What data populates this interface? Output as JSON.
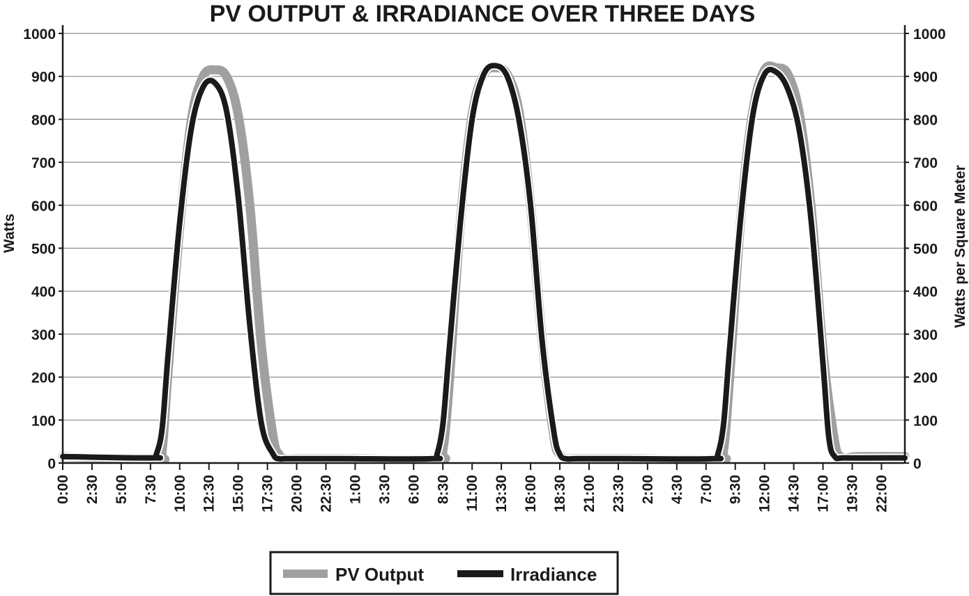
{
  "chart_data": {
    "type": "line",
    "title": "PV OUTPUT & IRRADIANCE OVER THREE DAYS",
    "ylabel_left": "Watts",
    "ylabel_right": "Watts per Square Meter",
    "ylim": [
      0,
      1000
    ],
    "y_ticks": [
      "0",
      "100",
      "200",
      "300",
      "400",
      "500",
      "600",
      "700",
      "800",
      "900",
      "1000"
    ],
    "x_tick_labels": [
      "0:00",
      "2:30",
      "5:00",
      "7:30",
      "10:00",
      "12:30",
      "15:00",
      "17:30",
      "20:00",
      "22:30",
      "1:00",
      "3:30",
      "6:00",
      "8:30",
      "11:00",
      "13:30",
      "16:00",
      "18:30",
      "21:00",
      "23:30",
      "2:00",
      "4:30",
      "7:00",
      "9:30",
      "12:00",
      "14:30",
      "17:00",
      "19:30",
      "22:00"
    ],
    "x_hours_range": [
      0,
      72
    ],
    "x_tick_step_hours": 2.5,
    "grid": "horizontal",
    "legend_position": "bottom-center",
    "series": [
      {
        "name": "PV Output",
        "color": "#a0a0a0",
        "x_hours": [
          0,
          8,
          8.5,
          9,
          10,
          11,
          12,
          13,
          14,
          15,
          16,
          17,
          18,
          18.5,
          19,
          20,
          24,
          32,
          32.5,
          33,
          34,
          35,
          36,
          37,
          38,
          39,
          40,
          41,
          42,
          42.5,
          43,
          44,
          48,
          56,
          56.5,
          57,
          58,
          59,
          60,
          61,
          62,
          63,
          64,
          65,
          66,
          66.5,
          67,
          68,
          72
        ],
        "values": [
          15,
          10,
          30,
          210,
          550,
          800,
          900,
          915,
          900,
          810,
          600,
          270,
          60,
          20,
          10,
          10,
          10,
          10,
          30,
          170,
          560,
          810,
          905,
          920,
          905,
          820,
          600,
          280,
          60,
          20,
          10,
          10,
          10,
          10,
          30,
          190,
          580,
          820,
          915,
          920,
          905,
          810,
          590,
          260,
          50,
          15,
          12,
          15,
          15
        ]
      },
      {
        "name": "Irradiance",
        "color": "#1a1a1a",
        "x_hours": [
          0,
          7.7,
          8,
          8.5,
          9,
          10,
          11,
          12,
          13,
          14,
          15,
          16,
          17,
          18,
          18.5,
          19,
          20,
          24,
          31.6,
          32,
          32.5,
          33,
          34,
          35,
          36,
          37,
          38,
          39,
          40,
          41,
          42,
          42.5,
          43,
          44,
          48,
          55.6,
          56,
          56.5,
          57,
          58,
          59,
          60,
          61,
          62,
          63,
          64,
          65,
          65.5,
          66,
          67,
          72
        ],
        "values": [
          15,
          12,
          20,
          80,
          250,
          560,
          780,
          875,
          885,
          820,
          620,
          320,
          90,
          20,
          10,
          10,
          10,
          10,
          10,
          20,
          90,
          250,
          560,
          800,
          905,
          925,
          900,
          800,
          600,
          280,
          70,
          20,
          10,
          10,
          10,
          10,
          20,
          90,
          260,
          580,
          810,
          905,
          910,
          870,
          770,
          560,
          230,
          60,
          15,
          12,
          12
        ]
      }
    ]
  }
}
